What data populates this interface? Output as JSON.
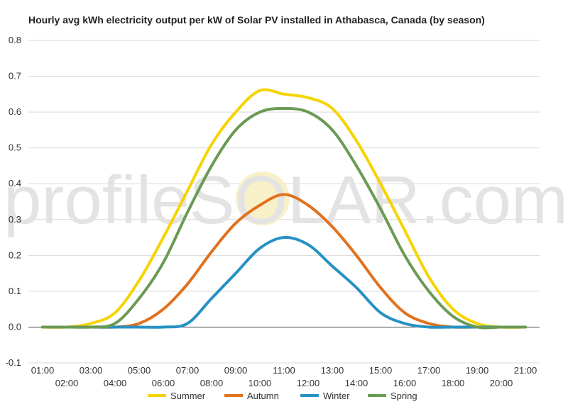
{
  "watermark": "profileSOLAR.com",
  "chart_data": {
    "type": "line",
    "title": "Hourly avg kWh electricity output per kW of Solar PV installed in Athabasca, Canada (by season)",
    "xlabel": "",
    "ylabel": "",
    "x": [
      "01:00",
      "02:00",
      "03:00",
      "04:00",
      "05:00",
      "06:00",
      "07:00",
      "08:00",
      "09:00",
      "10:00",
      "11:00",
      "12:00",
      "13:00",
      "14:00",
      "15:00",
      "16:00",
      "17:00",
      "18:00",
      "19:00",
      "20:00",
      "21:00"
    ],
    "yticks": [
      "0.8",
      "0.7",
      "0.6",
      "0.5",
      "0.4",
      "0.3",
      "0.2",
      "0.1",
      "0.0",
      "-0.1"
    ],
    "ylim": [
      -0.1,
      0.8
    ],
    "grid": true,
    "legend_position": "bottom",
    "series": [
      {
        "name": "Summer",
        "color": "#f5d400",
        "values": [
          0.0,
          0.0,
          0.01,
          0.04,
          0.13,
          0.25,
          0.38,
          0.51,
          0.6,
          0.66,
          0.65,
          0.64,
          0.61,
          0.52,
          0.4,
          0.27,
          0.14,
          0.05,
          0.01,
          0.0,
          0.0
        ]
      },
      {
        "name": "Autumn",
        "color": "#e1711e",
        "values": [
          0.0,
          0.0,
          0.0,
          0.0,
          0.01,
          0.05,
          0.12,
          0.21,
          0.29,
          0.34,
          0.37,
          0.34,
          0.28,
          0.2,
          0.11,
          0.04,
          0.01,
          0.0,
          0.0,
          0.0,
          0.0
        ]
      },
      {
        "name": "Winter",
        "color": "#2791c4",
        "values": [
          0.0,
          0.0,
          0.0,
          0.0,
          0.0,
          0.0,
          0.01,
          0.08,
          0.15,
          0.22,
          0.25,
          0.23,
          0.17,
          0.11,
          0.04,
          0.01,
          0.0,
          0.0,
          0.0,
          0.0,
          0.0
        ]
      },
      {
        "name": "Spring",
        "color": "#6b9a55",
        "values": [
          0.0,
          0.0,
          0.0,
          0.01,
          0.08,
          0.18,
          0.32,
          0.45,
          0.55,
          0.6,
          0.61,
          0.6,
          0.55,
          0.45,
          0.33,
          0.2,
          0.1,
          0.03,
          0.0,
          0.0,
          0.0
        ]
      }
    ]
  }
}
